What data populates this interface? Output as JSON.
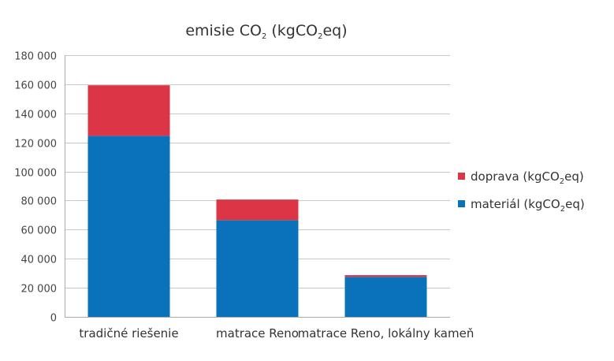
{
  "chart_data": {
    "type": "bar",
    "stacked": true,
    "title": {
      "prefix": "emisie CO",
      "sub": "2",
      "suffix": " (kgCO",
      "sub2": "2",
      "suffix2": "eq)"
    },
    "categories": [
      "tradičné riešenie",
      "matrace Reno",
      "matrace Reno, lokálny kameň"
    ],
    "series": [
      {
        "name_prefix": "materiál (kgCO",
        "name_sub": "2",
        "name_suffix": "eq)",
        "color": "#0a72ba",
        "values": [
          124500,
          66500,
          27500
        ]
      },
      {
        "name_prefix": "doprava (kgCO",
        "name_sub": "2",
        "name_suffix": "eq)",
        "color": "#dc3545",
        "values": [
          34800,
          14200,
          1200
        ]
      }
    ],
    "ylim": [
      0,
      180000
    ],
    "yticks": [
      0,
      20000,
      40000,
      60000,
      80000,
      100000,
      120000,
      140000,
      160000,
      180000
    ],
    "ytick_labels": [
      "0",
      "20 000",
      "40 000",
      "60 000",
      "80 000",
      "100 000",
      "120 000",
      "140 000",
      "160 000",
      "180 000"
    ],
    "grid": true,
    "legend_position": "right"
  }
}
